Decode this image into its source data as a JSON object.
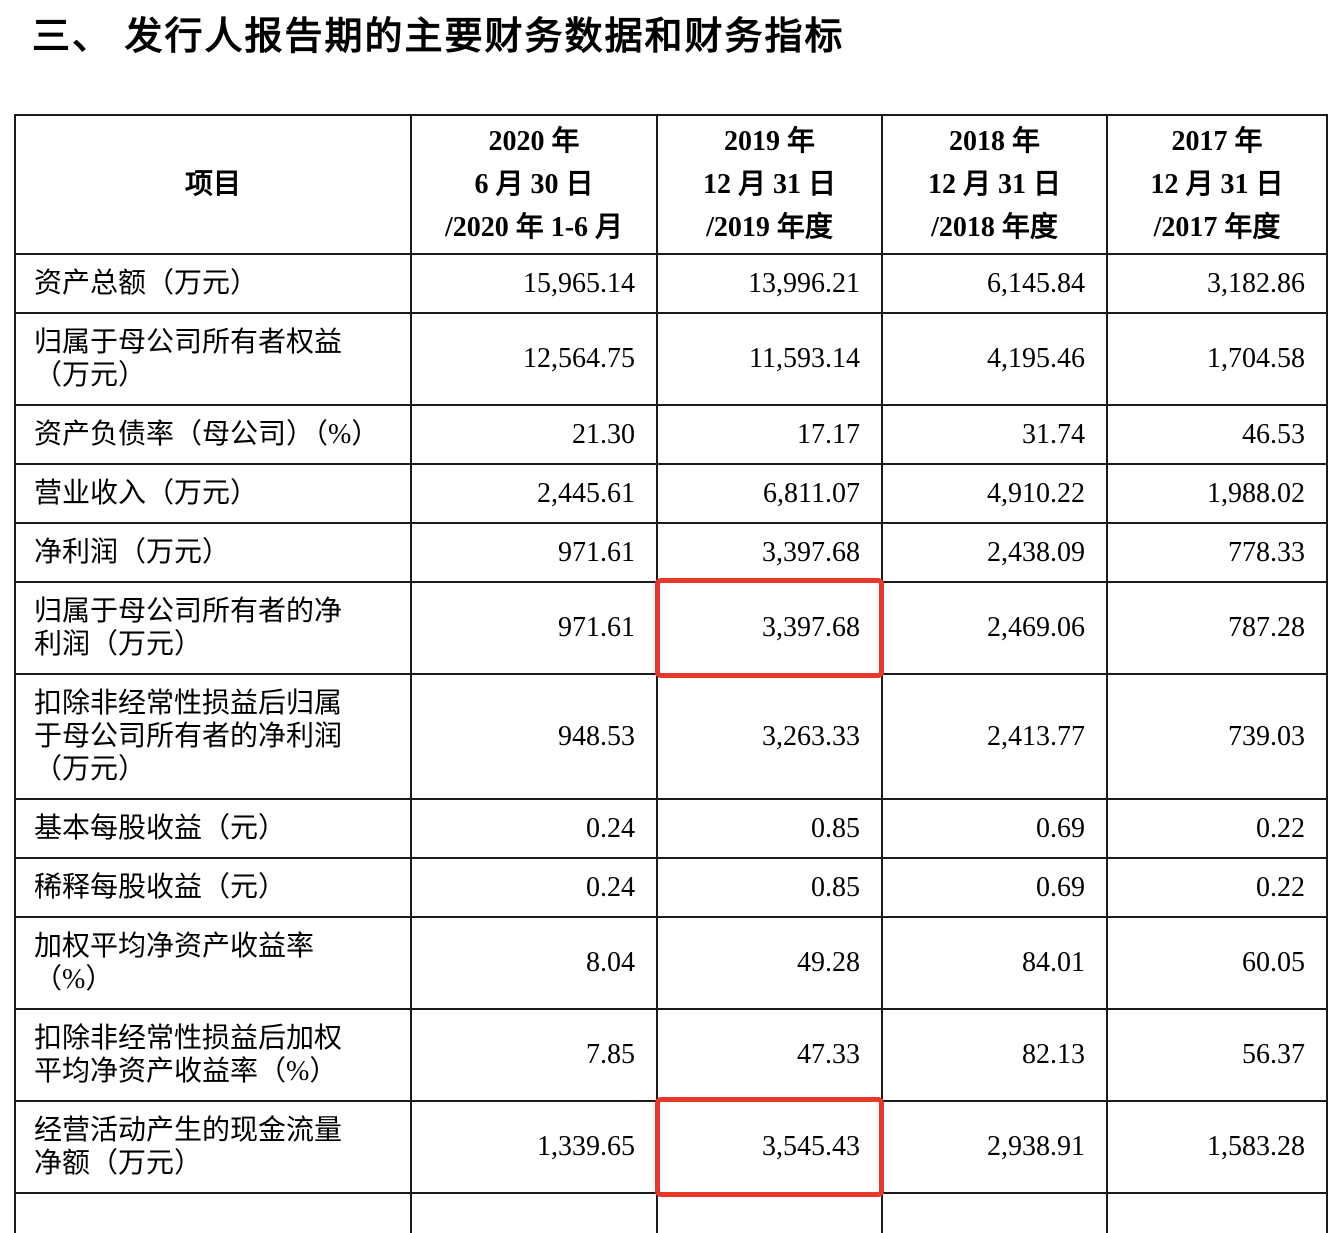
{
  "page": {
    "title": "三、 发行人报告期的主要财务数据和财务指标"
  },
  "table": {
    "item_header": "项目",
    "column_headers": [
      {
        "key": "2020-h1",
        "text": "2020 年\n6 月 30 日\n/2020 年 1-6 月"
      },
      {
        "key": "2019",
        "text": "2019 年\n12 月 31 日\n/2019 年度"
      },
      {
        "key": "2018",
        "text": "2018 年\n12 月 31 日\n/2018 年度"
      },
      {
        "key": "2017",
        "text": "2017 年\n12 月 31 日\n/2017 年度"
      }
    ],
    "rows": [
      {
        "label": "资产总额（万元）",
        "values": [
          "15,965.14",
          "13,996.21",
          "6,145.84",
          "3,182.86"
        ],
        "highlight": []
      },
      {
        "label": "归属于母公司所有者权益\n（万元）",
        "values": [
          "12,564.75",
          "11,593.14",
          "4,195.46",
          "1,704.58"
        ],
        "highlight": []
      },
      {
        "label": "资产负债率（母公司）（%）",
        "values": [
          "21.30",
          "17.17",
          "31.74",
          "46.53"
        ],
        "highlight": []
      },
      {
        "label": "营业收入（万元）",
        "values": [
          "2,445.61",
          "6,811.07",
          "4,910.22",
          "1,988.02"
        ],
        "highlight": []
      },
      {
        "label": "净利润（万元）",
        "values": [
          "971.61",
          "3,397.68",
          "2,438.09",
          "778.33"
        ],
        "highlight": []
      },
      {
        "label": "归属于母公司所有者的净\n利润（万元）",
        "values": [
          "971.61",
          "3,397.68",
          "2,469.06",
          "787.28"
        ],
        "highlight": [
          1
        ]
      },
      {
        "label": "扣除非经常性损益后归属\n于母公司所有者的净利润\n（万元）",
        "values": [
          "948.53",
          "3,263.33",
          "2,413.77",
          "739.03"
        ],
        "highlight": []
      },
      {
        "label": "基本每股收益（元）",
        "values": [
          "0.24",
          "0.85",
          "0.69",
          "0.22"
        ],
        "highlight": []
      },
      {
        "label": "稀释每股收益（元）",
        "values": [
          "0.24",
          "0.85",
          "0.69",
          "0.22"
        ],
        "highlight": []
      },
      {
        "label": "加权平均净资产收益率\n（%）",
        "values": [
          "8.04",
          "49.28",
          "84.01",
          "60.05"
        ],
        "highlight": []
      },
      {
        "label": "扣除非经常性损益后加权\n平均净资产收益率（%）",
        "values": [
          "7.85",
          "47.33",
          "82.13",
          "56.37"
        ],
        "highlight": []
      },
      {
        "label": "经营活动产生的现金流量\n净额（万元）",
        "values": [
          "1,339.65",
          "3,545.43",
          "2,938.91",
          "1,583.28"
        ],
        "highlight": [
          1
        ]
      }
    ],
    "highlight_color": "#e8382a"
  }
}
